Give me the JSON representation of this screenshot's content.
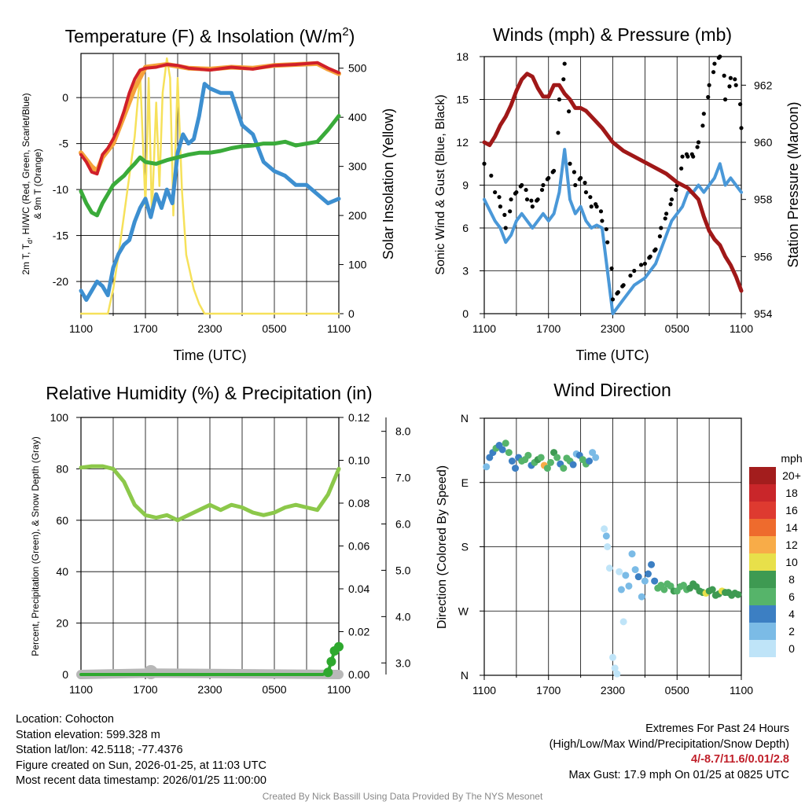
{
  "colors": {
    "temperature": "#d0202a",
    "wind_chill": "#e06030",
    "dewpoint": "#3d8fd0",
    "humidity_temp": "#3aab3a",
    "temp_9m": "#f5a23a",
    "insolation": "#f6e15a",
    "pressure": "#a01818",
    "wind": "#4a98d8",
    "gust": "#000000",
    "rh": "#8cc84a",
    "precip": "#2ea82e",
    "snow": "#b8b8b8"
  },
  "chart_data": [
    {
      "id": "temp",
      "type": "line",
      "title": "Temperature (F) & Insolation (W/m",
      "title_sup": "2",
      "title_end": ")",
      "xlabel": "Time (UTC)",
      "ylabel_line1": "2m T, T",
      "ylabel_sub": "d",
      "ylabel_line1_end": ", HI/WC (Red, Green, Scarlet/Blue)",
      "ylabel_line2": "& 9m T (Orange)",
      "ylabel_right": "Solar Insolation (Yellow)",
      "xticks": [
        "1100",
        "1700",
        "2300",
        "0500",
        "1100"
      ],
      "xlim": [
        0,
        24
      ],
      "ylim": [
        -23.5,
        4.8
      ],
      "ylim_right": [
        0,
        530
      ],
      "yticks": [
        0,
        -5,
        -10,
        -15,
        -20
      ],
      "yticks_right": [
        0,
        100,
        200,
        300,
        400,
        500
      ],
      "series": [
        {
          "name": "2m Temperature",
          "x": [
            0,
            0.5,
            1,
            1.5,
            2,
            2.5,
            3,
            3.5,
            4,
            4.5,
            5,
            5.5,
            6,
            7,
            8,
            9,
            10,
            12,
            14,
            16,
            18,
            20,
            22,
            23,
            24
          ],
          "y": [
            -6.2,
            -7.0,
            -8.1,
            -8.3,
            -6.2,
            -5.5,
            -4.5,
            -3.2,
            -1.5,
            0.5,
            2.0,
            3.0,
            3.2,
            3.3,
            3.6,
            3.5,
            3.2,
            3.0,
            3.3,
            3.1,
            3.5,
            3.6,
            3.8,
            3.2,
            2.7
          ]
        },
        {
          "name": "Dewpoint",
          "x": [
            0,
            0.5,
            1,
            1.5,
            2,
            2.5,
            3,
            3.5,
            4,
            4.5,
            5,
            5.5,
            6,
            6.5,
            7,
            7.5,
            8,
            8.5,
            9,
            9.5,
            10,
            10.5,
            11,
            11.5,
            12,
            13,
            14,
            15,
            16,
            17,
            18,
            19,
            20,
            21,
            22,
            23,
            24
          ],
          "y": [
            -21,
            -22,
            -21,
            -20,
            -20.5,
            -21.5,
            -18.5,
            -17,
            -16,
            -15.5,
            -13.5,
            -12,
            -11,
            -13,
            -10.5,
            -12,
            -10,
            -11.5,
            -6,
            -4,
            -5,
            -4.5,
            -2,
            1.5,
            1,
            0.5,
            0.5,
            -3,
            -4,
            -7,
            -8,
            -8.5,
            -9.5,
            -9.5,
            -10.5,
            -11.5,
            -11
          ]
        },
        {
          "name": "Heat Index / Wind Chill (Green)",
          "x": [
            0,
            0.5,
            1,
            1.5,
            2,
            2.5,
            3,
            3.5,
            4,
            4.5,
            5,
            5.5,
            6,
            7,
            8,
            9,
            10,
            11,
            12,
            13,
            14,
            15,
            16,
            17,
            18,
            19,
            20,
            21,
            22,
            23,
            24
          ],
          "y": [
            -10.2,
            -11.5,
            -12.5,
            -12.8,
            -11.5,
            -10.5,
            -9.5,
            -9,
            -8.5,
            -7.8,
            -7.2,
            -6.5,
            -7,
            -7.2,
            -6.8,
            -6.5,
            -6.2,
            -6,
            -6,
            -5.8,
            -5.5,
            -5.3,
            -5.2,
            -5,
            -5,
            -4.8,
            -5.2,
            -5,
            -4.8,
            -3.5,
            -2
          ]
        },
        {
          "name": "9m Temperature",
          "x": [
            0,
            1,
            1.5,
            2,
            3,
            4,
            5,
            6,
            8,
            10,
            12,
            14,
            16,
            18,
            20,
            22,
            23,
            24
          ],
          "y": [
            -6,
            -7.5,
            -8,
            -6.5,
            -5,
            -2,
            1,
            3.3,
            3.6,
            3.2,
            3.1,
            3.3,
            3.2,
            3.5,
            3.6,
            3.7,
            3.1,
            2.6
          ]
        },
        {
          "name": "Solar Insolation",
          "axis": "right",
          "x": [
            0,
            2.5,
            3,
            3.5,
            4,
            4.5,
            5,
            5.5,
            6,
            6.3,
            6.6,
            7,
            7.3,
            7.6,
            8,
            8.3,
            8.6,
            9,
            9.4,
            9.8,
            10.2,
            10.5,
            11,
            11.5,
            12,
            24
          ],
          "y": [
            0,
            0,
            50,
            120,
            200,
            280,
            360,
            490,
            220,
            480,
            200,
            430,
            260,
            450,
            520,
            480,
            200,
            480,
            250,
            120,
            80,
            50,
            20,
            0,
            0,
            0
          ]
        }
      ]
    },
    {
      "id": "winds",
      "type": "line",
      "title": "Winds (mph) & Pressure (mb)",
      "xlabel": "Time (UTC)",
      "ylabel": "Sonic Wind & Gust (Blue, Black)",
      "ylabel_right": "Station Pressure (Maroon)",
      "xticks": [
        "1100",
        "1700",
        "2300",
        "0500",
        "1100"
      ],
      "xlim": [
        0,
        24
      ],
      "ylim": [
        0,
        18
      ],
      "ylim_right": [
        954,
        963
      ],
      "yticks": [
        0,
        3,
        6,
        9,
        12,
        15,
        18
      ],
      "yticks_right": [
        954,
        956,
        958,
        960,
        962
      ],
      "series": [
        {
          "name": "Sonic Wind",
          "x": [
            0,
            1,
            1.5,
            2,
            2.5,
            3,
            3.5,
            4,
            4.5,
            5,
            5.5,
            6,
            6.5,
            7,
            7.5,
            8,
            8.5,
            9,
            9.5,
            10,
            10.5,
            11,
            11.5,
            12,
            12.5,
            13,
            14,
            15,
            15.5,
            16,
            16.5,
            17,
            17.5,
            18,
            18.5,
            19,
            19.5,
            20,
            20.5,
            21,
            21.5,
            22,
            22.5,
            23,
            23.5,
            24
          ],
          "y": [
            8,
            6.5,
            6,
            5,
            5.5,
            6.5,
            7,
            6.5,
            6,
            6.5,
            7,
            6.5,
            7,
            8.5,
            11.5,
            8,
            7,
            7.5,
            6.5,
            6,
            6.2,
            6,
            3,
            0,
            0.5,
            1,
            2,
            2.5,
            3,
            3.5,
            4.5,
            5.5,
            6.5,
            7,
            7.5,
            8.5,
            8.5,
            9,
            8.5,
            9,
            9.5,
            10.5,
            9,
            9.5,
            9,
            8.5
          ]
        },
        {
          "name": "Gust",
          "x": [
            0,
            1,
            1.5,
            2,
            2.5,
            3,
            3.5,
            4,
            4.5,
            5,
            5.5,
            6,
            6.5,
            7,
            7.5,
            8,
            8.5,
            9,
            9.5,
            10,
            10.5,
            11,
            11.5,
            12,
            12.5,
            13,
            14,
            15,
            15.5,
            16,
            16.5,
            17,
            17.5,
            18,
            18.5,
            19,
            19.5,
            20,
            20.5,
            21,
            21.5,
            22,
            22.5,
            23,
            23.5,
            24
          ],
          "y": [
            10.5,
            8.5,
            7.5,
            6,
            8,
            8.5,
            9,
            8,
            7.5,
            8,
            9,
            9.5,
            10,
            15,
            17.5,
            10.5,
            9,
            9.5,
            8.5,
            7.5,
            7.5,
            6.5,
            5,
            1,
            1.5,
            2,
            3,
            3.5,
            4,
            4.5,
            6,
            7,
            8,
            9,
            11,
            11,
            11,
            12,
            14,
            16,
            17.5,
            18,
            15,
            16.5,
            16,
            13
          ]
        },
        {
          "name": "Station Pressure",
          "axis": "right",
          "x": [
            0,
            0.5,
            1,
            1.5,
            2,
            2.5,
            3,
            3.5,
            4,
            4.5,
            5,
            5.5,
            6,
            6.5,
            7,
            7.5,
            8,
            8.5,
            9,
            9.5,
            10,
            11,
            12,
            13,
            14,
            15,
            16,
            17,
            18,
            19,
            20,
            20.5,
            21,
            21.5,
            22,
            22.5,
            23,
            23.5,
            24
          ],
          "y": [
            960,
            959.9,
            960.2,
            960.6,
            960.9,
            961.3,
            961.8,
            962.2,
            962.4,
            962.3,
            961.9,
            961.6,
            961.6,
            962,
            962,
            961.7,
            961.5,
            961.2,
            961.2,
            961.1,
            960.9,
            960.5,
            960,
            959.7,
            959.5,
            959.3,
            959.1,
            958.9,
            958.6,
            958.4,
            958,
            957.4,
            956.9,
            956.6,
            956.4,
            956,
            955.7,
            955.3,
            954.8
          ]
        }
      ]
    },
    {
      "id": "rh",
      "type": "line",
      "title": "Relative Humidity (%) & Precipitation (in)",
      "ylabel": "Percent, Precipitation (Green), & Snow Depth (Gray)",
      "xticks": [
        "1100",
        "1700",
        "2300",
        "0500",
        "1100"
      ],
      "xlim": [
        0,
        24
      ],
      "ylim": [
        0,
        100
      ],
      "ylim_precip": [
        0,
        0.12
      ],
      "ylim_snow": [
        2.75,
        8.3
      ],
      "yticks": [
        0,
        20,
        40,
        60,
        80,
        100
      ],
      "yticks_precip": [
        "0.00",
        "0.02",
        "0.04",
        "0.06",
        "0.08",
        "0.10",
        "0.12"
      ],
      "yticks_snow": [
        "3.0",
        "4.0",
        "5.0",
        "6.0",
        "7.0",
        "8.0"
      ],
      "series": [
        {
          "name": "Relative Humidity",
          "x": [
            0,
            1,
            2,
            3,
            4,
            5,
            6,
            7,
            8,
            9,
            10,
            11,
            12,
            13,
            14,
            15,
            16,
            17,
            18,
            19,
            20,
            21,
            22,
            23,
            24
          ],
          "y": [
            80.5,
            81,
            81,
            80,
            75,
            66,
            62,
            61,
            62,
            60,
            62,
            64,
            66,
            64,
            66,
            65,
            63,
            62,
            63,
            65,
            66,
            65,
            64,
            70,
            80
          ]
        },
        {
          "name": "Precipitation",
          "axis": "precip",
          "x": [
            0,
            22.5,
            23,
            23.3,
            23.6,
            24
          ],
          "y": [
            0,
            0,
            0.001,
            0.006,
            0.011,
            0.013
          ]
        },
        {
          "name": "Snow Depth",
          "axis": "snow",
          "x": [
            0,
            6.5,
            24
          ],
          "y": [
            2.75,
            2.78,
            2.75
          ]
        }
      ]
    },
    {
      "id": "wdir",
      "type": "scatter",
      "title": "Wind Direction",
      "ylabel": "Direction (Colored By Speed)",
      "xticks": [
        "1100",
        "1700",
        "2300",
        "0500",
        "1100"
      ],
      "yticks": [
        "N",
        "W",
        "S",
        "E",
        "N"
      ],
      "xlim": [
        0,
        24
      ],
      "ylim": [
        0,
        360
      ],
      "legend_title": "mph",
      "legend_labels": [
        "20+",
        "18",
        "16",
        "14",
        "12",
        "10",
        "8",
        "6",
        "4",
        "2",
        "0"
      ],
      "legend_colors": [
        "#a31d1d",
        "#c9262a",
        "#de3a30",
        "#ee6b2d",
        "#f8ac48",
        "#e8e04a",
        "#3e9a52",
        "#56b46a",
        "#3c7fc3",
        "#7bbbe6",
        "#bfe4f8"
      ],
      "series": [
        {
          "name": "Direction",
          "x": [
            0.2,
            0.5,
            0.8,
            1.1,
            1.4,
            1.7,
            2,
            2.3,
            2.6,
            2.9,
            3.2,
            3.5,
            3.8,
            4.1,
            4.4,
            4.7,
            5,
            5.3,
            5.6,
            5.9,
            6.2,
            6.5,
            6.8,
            7.1,
            7.4,
            7.7,
            8,
            8.3,
            8.6,
            8.9,
            9.2,
            9.5,
            9.8,
            10.1,
            10.4,
            11.2,
            11.4,
            11.5,
            11.7,
            12,
            12.2,
            12.4,
            12.6,
            12.8,
            13,
            13.2,
            13.5,
            13.8,
            14.1,
            14.4,
            14.7,
            15,
            15.3,
            15.6,
            15.9,
            16.2,
            16.5,
            16.8,
            17.1,
            17.4,
            17.7,
            18,
            18.3,
            18.6,
            18.9,
            19.2,
            19.5,
            19.8,
            20.1,
            20.4,
            20.7,
            21,
            21.3,
            21.6,
            21.9,
            22.2,
            22.5,
            22.8,
            23.1,
            23.4,
            23.7
          ],
          "y": [
            292,
            305,
            312,
            318,
            322,
            316,
            325,
            312,
            300,
            290,
            305,
            300,
            302,
            308,
            294,
            298,
            302,
            305,
            294,
            290,
            298,
            312,
            305,
            296,
            290,
            304,
            300,
            295,
            310,
            308,
            302,
            296,
            300,
            312,
            305,
            205,
            195,
            180,
            150,
            25,
            10,
            2,
            145,
            120,
            75,
            140,
            125,
            170,
            148,
            138,
            110,
            132,
            142,
            155,
            132,
            122,
            126,
            120,
            128,
            125,
            118,
            118,
            124,
            126,
            120,
            122,
            128,
            124,
            118,
            116,
            115,
            118,
            120,
            112,
            114,
            118,
            116,
            116,
            112,
            115,
            113
          ],
          "speed": [
            3,
            4,
            5,
            6,
            4,
            5,
            7,
            6,
            4,
            5,
            5,
            6,
            7,
            6,
            5,
            6,
            8,
            7,
            12,
            7,
            6,
            8,
            7,
            5,
            6,
            7,
            6,
            5,
            3,
            4,
            6,
            7,
            4,
            3,
            2,
            1.5,
            2,
            1,
            1,
            0.5,
            0.5,
            0.5,
            1.5,
            2,
            1.5,
            2,
            2.5,
            3,
            3,
            4,
            2.5,
            2,
            4,
            4,
            5,
            6,
            6,
            6,
            7,
            7,
            8,
            7,
            6,
            7,
            6,
            8,
            9,
            9,
            8,
            9,
            10,
            9,
            8,
            9,
            8,
            10,
            9,
            8,
            9,
            9,
            8
          ]
        }
      ]
    }
  ],
  "info": {
    "location": "Location: Cohocton",
    "elevation": "Station elevation: 599.328 m",
    "latlon": "Station lat/lon: 42.5118; -77.4376",
    "created": "Figure created on Sun, 2026-01-25, at 11:03 UTC",
    "recent": "Most recent data timestamp: 2026/01/25 11:00:00",
    "extremes_title": "Extremes For Past 24 Hours",
    "extremes_sub": "(High/Low/Max Wind/Precipitation/Snow Depth)",
    "extremes_values": "4/-8.7/11.6/0.01/2.8",
    "max_gust": "Max Gust: 17.9 mph On 01/25 at 0825 UTC",
    "credit": "Created By Nick Bassill Using Data Provided By The NYS Mesonet"
  }
}
